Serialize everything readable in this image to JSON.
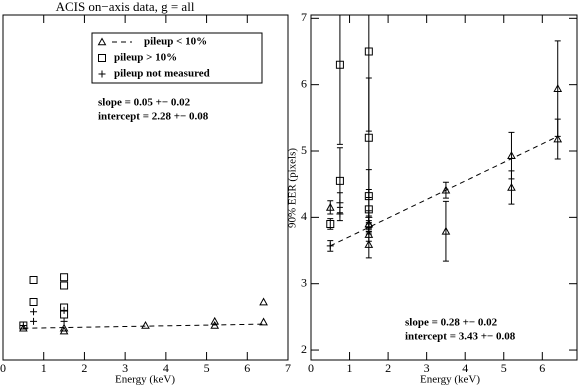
{
  "chart_data": [
    {
      "type": "scatter",
      "title": "ACIS on−axis data, g = all",
      "x_label": "Energy (keV)",
      "xlim": [
        0,
        7
      ],
      "xticks": [
        0,
        1,
        2,
        3,
        4,
        5,
        6,
        7
      ],
      "ylim": [
        0,
        25
      ],
      "series": [
        {
          "name": "pileup < 10%",
          "marker": "triangle",
          "color": "#000000",
          "x": [
            0.5,
            1.5,
            1.5,
            3.5,
            5.2,
            5.2,
            6.4,
            6.4
          ],
          "values": [
            2.3,
            2.3,
            2.1,
            2.5,
            2.8,
            2.5,
            4.2,
            2.75
          ]
        },
        {
          "name": "pileup > 10%",
          "marker": "square",
          "color": "#000000",
          "x": [
            0.5,
            0.75,
            0.75,
            1.5,
            1.5,
            1.5,
            1.5
          ],
          "values": [
            2.5,
            5.8,
            4.2,
            6.0,
            5.4,
            3.8,
            3.3
          ]
        },
        {
          "name": "pileup not measured",
          "marker": "plus",
          "color": "#000000",
          "x": [
            0.5,
            0.75,
            0.75,
            1.5,
            1.5
          ],
          "values": [
            2.5,
            3.5,
            2.8,
            3.6,
            2.8
          ]
        }
      ],
      "fit": {
        "x": [
          0.5,
          6.4
        ],
        "values": [
          2.3,
          2.6
        ]
      },
      "annotations": [
        "slope = 0.05 +− 0.02",
        "intercept = 2.28 +− 0.08"
      ]
    },
    {
      "type": "scatter",
      "x_label": "Energy (keV)",
      "y_label": "90% EER (pixels)",
      "xlim": [
        0,
        6.9
      ],
      "xticks": [
        0,
        1,
        2,
        3,
        4,
        5,
        6
      ],
      "ylim": [
        1.85,
        7.05
      ],
      "yticks": [
        2,
        3,
        4,
        5,
        6,
        7
      ],
      "series": [
        {
          "marker": "triangle",
          "color": "#000000",
          "x": [
            0.5,
            1.5,
            1.5,
            1.5,
            3.5,
            3.5,
            5.2,
            5.2,
            6.4,
            6.4
          ],
          "values": [
            4.15,
            3.9,
            3.74,
            3.59,
            4.41,
            3.79,
            4.93,
            4.45,
            5.94,
            5.18
          ],
          "errors": [
            0.1,
            0.12,
            0.1,
            0.2,
            0.12,
            0.45,
            0.35,
            0.25,
            0.72,
            0.3
          ]
        },
        {
          "marker": "square",
          "color": "#000000",
          "x": [
            0.5,
            0.75,
            0.75,
            1.5,
            1.5,
            1.5,
            1.5
          ],
          "values": [
            3.9,
            6.3,
            4.55,
            6.5,
            5.2,
            4.32,
            4.12
          ],
          "errors": [
            0.08,
            1.2,
            0.5,
            1.2,
            0.9,
            0.4,
            0.3
          ]
        },
        {
          "marker": "plus",
          "color": "#000000",
          "x": [
            0.5,
            0.75,
            0.75,
            1.5,
            1.5
          ],
          "values": [
            3.57,
            4.22,
            4.05,
            4.0,
            3.85
          ],
          "errors": [
            0.08,
            0.15,
            0.1,
            0.1,
            0.1
          ]
        }
      ],
      "fit": {
        "x": [
          0.5,
          6.4
        ],
        "values": [
          3.57,
          5.22
        ]
      },
      "annotations": [
        "slope = 0.28 +− 0.02",
        "intercept = 3.43 +− 0.08"
      ]
    }
  ]
}
